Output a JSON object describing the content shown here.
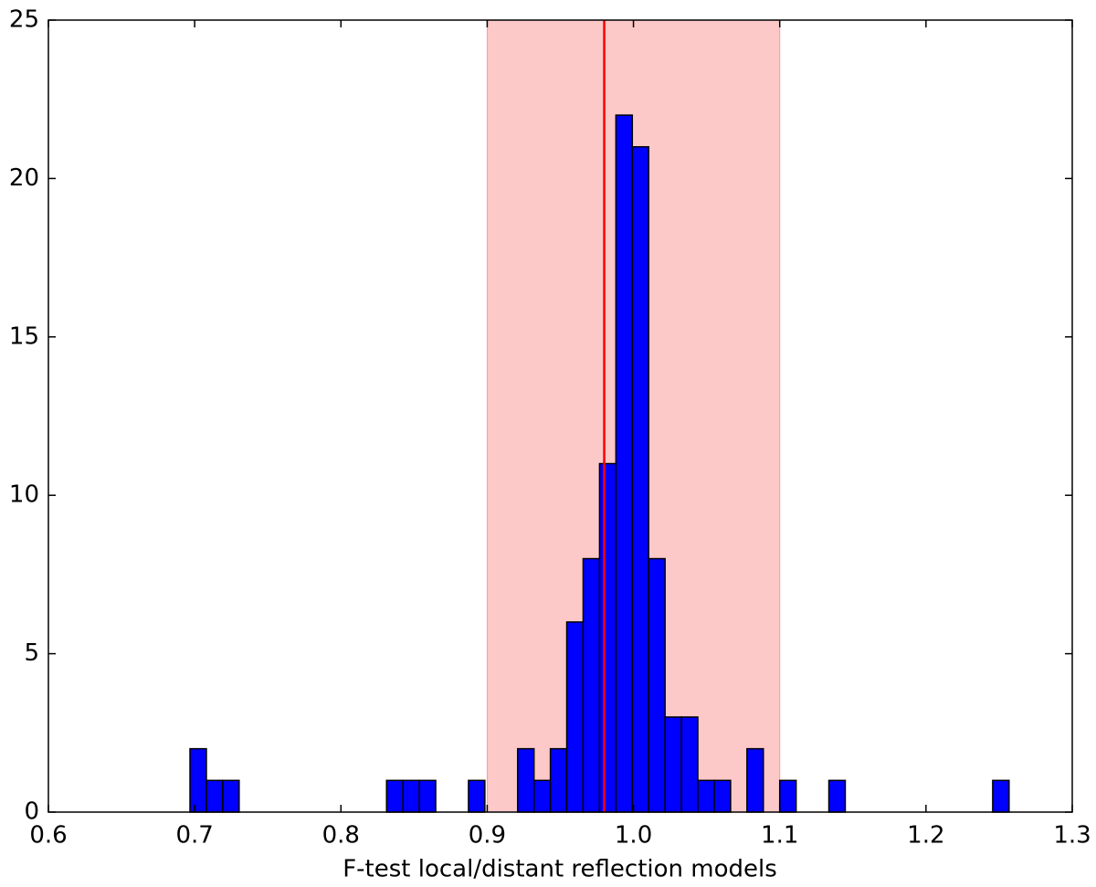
{
  "chart_data": {
    "type": "histogram",
    "xlabel": "F-test local/distant reflection models",
    "bins": [
      0.6968,
      0.708,
      0.7192,
      0.7304,
      0.7416,
      0.7528,
      0.764,
      0.7752,
      0.7864,
      0.7976,
      0.8088,
      0.82,
      0.8312,
      0.8424,
      0.8536,
      0.8648,
      0.876,
      0.8872,
      0.8984,
      0.9096,
      0.9208,
      0.932,
      0.9432,
      0.9544,
      0.9656,
      0.9768,
      0.988,
      0.9992,
      1.0104,
      1.0216,
      1.0328,
      1.044,
      1.0552,
      1.0664,
      1.0776,
      1.0888,
      1.1,
      1.1112,
      1.1224,
      1.1336,
      1.1448,
      1.156,
      1.1672,
      1.1784,
      1.1896,
      1.2008,
      1.212,
      1.2232,
      1.2344,
      1.2456,
      1.2568
    ],
    "values": [
      2,
      1,
      1,
      0,
      0,
      0,
      0,
      0,
      0,
      0,
      0,
      0,
      1,
      1,
      1,
      0,
      0,
      1,
      0,
      0,
      2,
      1,
      2,
      6,
      8,
      11,
      22,
      21,
      8,
      3,
      3,
      1,
      1,
      0,
      2,
      0,
      1,
      0,
      0,
      1,
      0,
      0,
      0,
      0,
      0,
      0,
      0,
      0,
      0,
      1
    ],
    "color": "#0000ff",
    "shaded_region": [
      0.9,
      1.1
    ],
    "shaded_color": "#fcc8c8",
    "vline": 0.98,
    "vline_color": "#ff0000",
    "xlim": [
      0.6,
      1.3
    ],
    "xticks": [
      0.6,
      0.7,
      0.8,
      0.9,
      {
        "value": 1,
        "label": "1.0"
      },
      1.1,
      1.2,
      1.3
    ],
    "ylim": [
      0,
      25
    ],
    "yticks": [
      0,
      5,
      10,
      15,
      20,
      25
    ],
    "grid": false
  }
}
